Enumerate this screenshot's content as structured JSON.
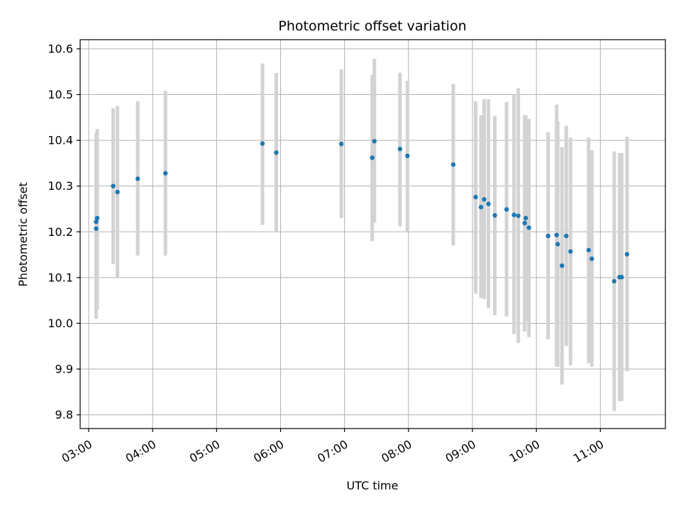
{
  "chart_data": {
    "type": "scatter",
    "title": "Photometric offset variation",
    "xlabel": "UTC time",
    "ylabel": "Photometric offset",
    "xlim": [
      "02:52",
      "12:01"
    ],
    "ylim": [
      9.77,
      10.62
    ],
    "grid": true,
    "x_tick_labels": [
      "03:00",
      "04:00",
      "05:00",
      "06:00",
      "07:00",
      "08:00",
      "09:00",
      "10:00",
      "11:00"
    ],
    "y_tick_labels": [
      "9.8",
      "9.9",
      "10.0",
      "10.1",
      "10.2",
      "10.3",
      "10.4",
      "10.5",
      "10.6"
    ],
    "colors": {
      "point": "#1f77b4",
      "errorbar": "#d3d3d3"
    },
    "points": [
      {
        "x": "03:07",
        "y": 10.207,
        "low": 10.01,
        "high": 10.415
      },
      {
        "x": "03:07",
        "y": 10.222,
        "low": 10.035,
        "high": 10.41
      },
      {
        "x": "03:08",
        "y": 10.23,
        "low": 10.03,
        "high": 10.425
      },
      {
        "x": "03:23",
        "y": 10.3,
        "low": 10.13,
        "high": 10.47
      },
      {
        "x": "03:27",
        "y": 10.287,
        "low": 10.1,
        "high": 10.475
      },
      {
        "x": "03:46",
        "y": 10.316,
        "low": 10.148,
        "high": 10.485
      },
      {
        "x": "04:12",
        "y": 10.328,
        "low": 10.148,
        "high": 10.508
      },
      {
        "x": "05:43",
        "y": 10.393,
        "low": 10.215,
        "high": 10.568
      },
      {
        "x": "05:56",
        "y": 10.373,
        "low": 10.2,
        "high": 10.547
      },
      {
        "x": "06:57",
        "y": 10.392,
        "low": 10.23,
        "high": 10.555
      },
      {
        "x": "07:26",
        "y": 10.362,
        "low": 10.18,
        "high": 10.543
      },
      {
        "x": "07:28",
        "y": 10.398,
        "low": 10.22,
        "high": 10.578
      },
      {
        "x": "07:52",
        "y": 10.381,
        "low": 10.212,
        "high": 10.548
      },
      {
        "x": "07:59",
        "y": 10.366,
        "low": 10.2,
        "high": 10.53
      },
      {
        "x": "08:42",
        "y": 10.347,
        "low": 10.17,
        "high": 10.523
      },
      {
        "x": "09:03",
        "y": 10.276,
        "low": 10.065,
        "high": 10.485
      },
      {
        "x": "09:08",
        "y": 10.254,
        "low": 10.055,
        "high": 10.455
      },
      {
        "x": "09:11",
        "y": 10.271,
        "low": 10.053,
        "high": 10.49
      },
      {
        "x": "09:15",
        "y": 10.261,
        "low": 10.033,
        "high": 10.49
      },
      {
        "x": "09:21",
        "y": 10.236,
        "low": 10.018,
        "high": 10.453
      },
      {
        "x": "09:32",
        "y": 10.249,
        "low": 10.015,
        "high": 10.484
      },
      {
        "x": "09:39",
        "y": 10.237,
        "low": 9.977,
        "high": 10.5
      },
      {
        "x": "09:43",
        "y": 10.235,
        "low": 9.957,
        "high": 10.514
      },
      {
        "x": "09:49",
        "y": 10.219,
        "low": 9.982,
        "high": 10.455
      },
      {
        "x": "09:50",
        "y": 10.23,
        "low": 10.005,
        "high": 10.455
      },
      {
        "x": "09:53",
        "y": 10.209,
        "low": 9.97,
        "high": 10.447
      },
      {
        "x": "10:11",
        "y": 10.191,
        "low": 9.965,
        "high": 10.418
      },
      {
        "x": "10:19",
        "y": 10.193,
        "low": 9.905,
        "high": 10.478
      },
      {
        "x": "10:20",
        "y": 10.173,
        "low": 9.905,
        "high": 10.442
      },
      {
        "x": "10:24",
        "y": 10.126,
        "low": 9.866,
        "high": 10.385
      },
      {
        "x": "10:28",
        "y": 10.191,
        "low": 9.95,
        "high": 10.432
      },
      {
        "x": "10:32",
        "y": 10.157,
        "low": 9.908,
        "high": 10.406
      },
      {
        "x": "10:49",
        "y": 10.16,
        "low": 9.913,
        "high": 10.406
      },
      {
        "x": "10:52",
        "y": 10.141,
        "low": 9.905,
        "high": 10.378
      },
      {
        "x": "11:13",
        "y": 10.092,
        "low": 9.808,
        "high": 10.376
      },
      {
        "x": "11:18",
        "y": 10.101,
        "low": 9.83,
        "high": 10.372
      },
      {
        "x": "11:20",
        "y": 10.101,
        "low": 9.83,
        "high": 10.372
      },
      {
        "x": "11:25",
        "y": 10.151,
        "low": 9.895,
        "high": 10.408
      }
    ]
  }
}
